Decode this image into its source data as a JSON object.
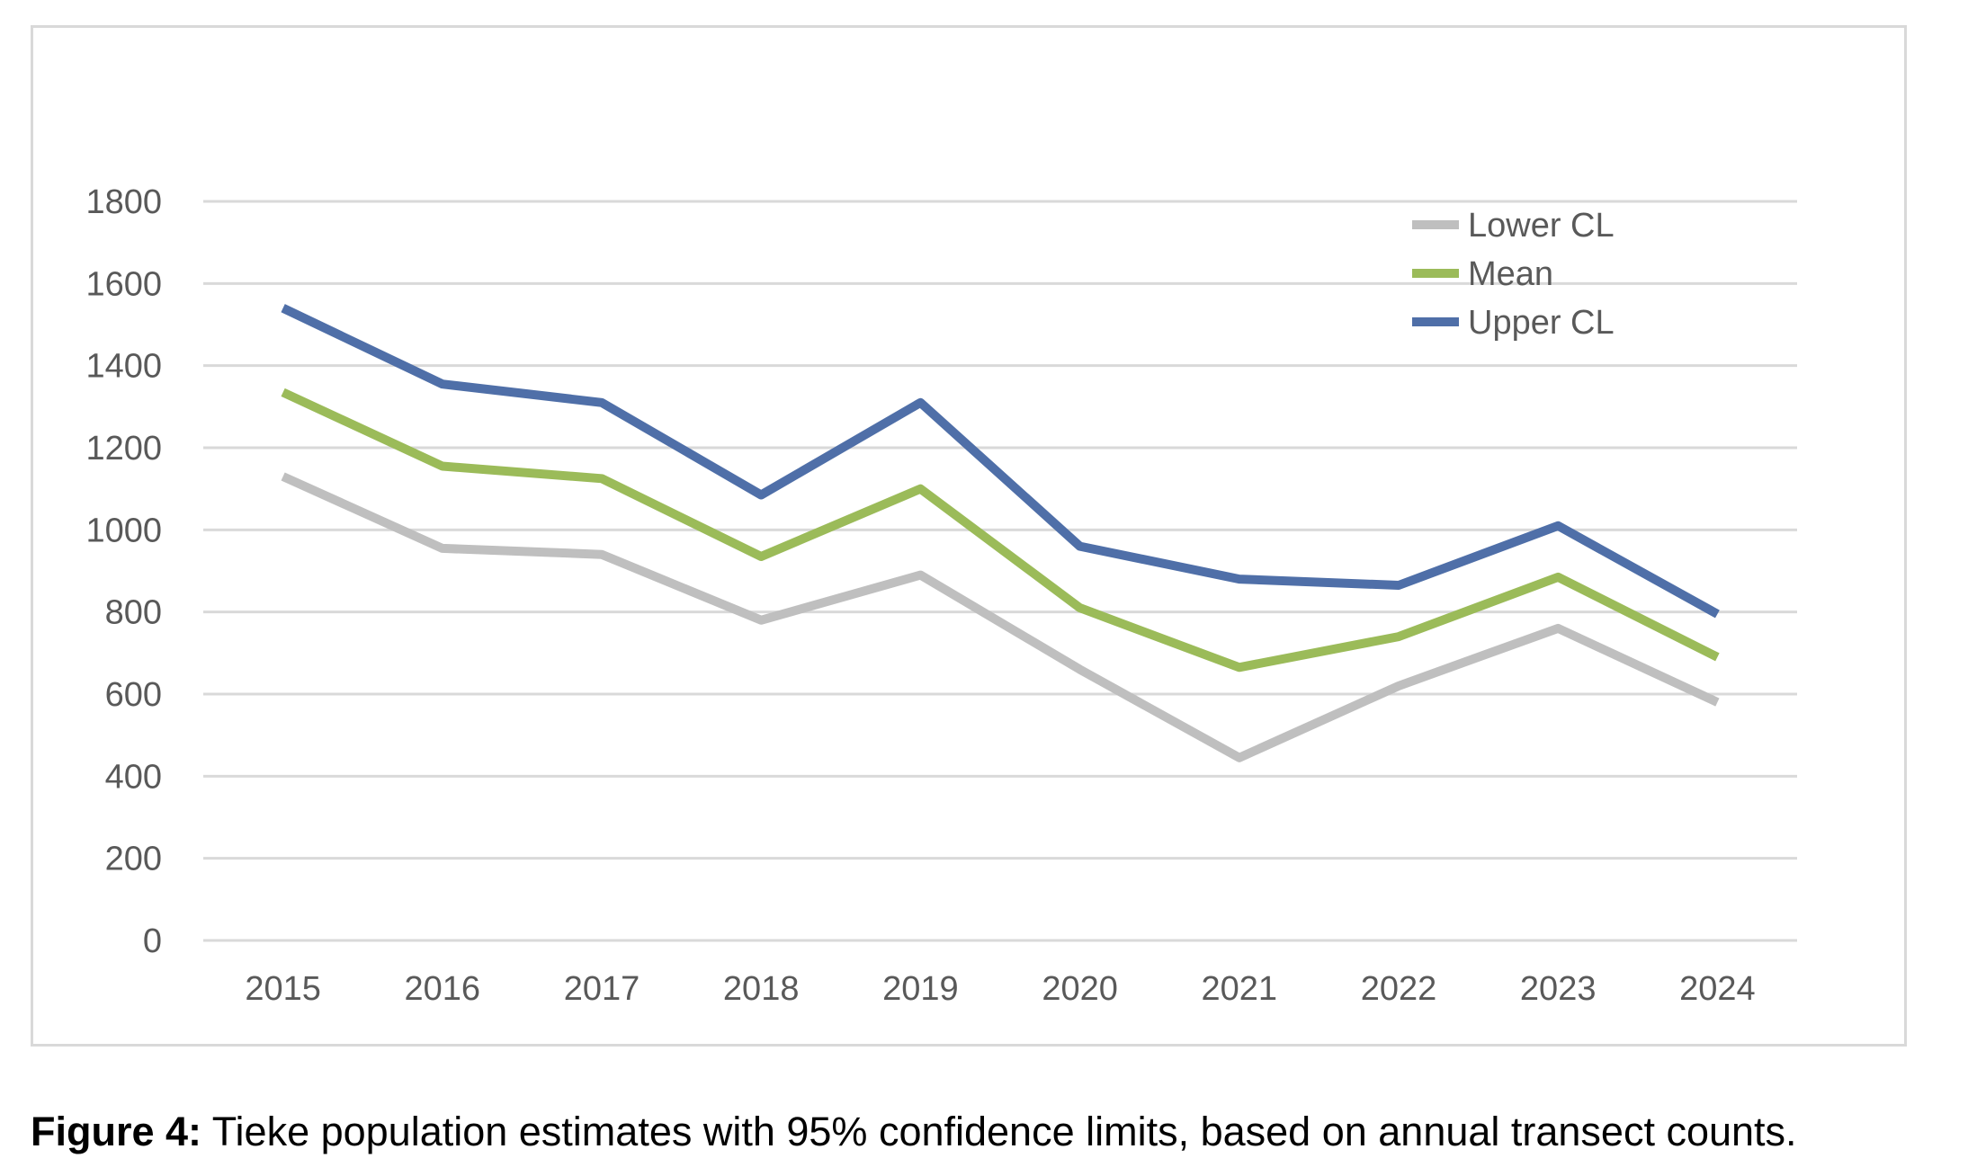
{
  "chart_data": {
    "type": "line",
    "x": [
      "2015",
      "2016",
      "2017",
      "2018",
      "2019",
      "2020",
      "2021",
      "2022",
      "2023",
      "2024"
    ],
    "series": [
      {
        "name": "Lower CL",
        "color": "#bfbfbf",
        "values": [
          1130,
          955,
          940,
          780,
          890,
          660,
          445,
          620,
          760,
          580
        ]
      },
      {
        "name": "Mean",
        "color": "#9bbb59",
        "values": [
          1335,
          1155,
          1125,
          935,
          1100,
          810,
          665,
          740,
          885,
          690
        ]
      },
      {
        "name": "Upper CL",
        "color": "#4f6fa8",
        "values": [
          1540,
          1355,
          1310,
          1085,
          1310,
          960,
          880,
          865,
          1010,
          795
        ]
      }
    ],
    "yticks": [
      "0",
      "200",
      "400",
      "600",
      "800",
      "1000",
      "1200",
      "1400",
      "1600",
      "1800"
    ],
    "ylim": [
      0,
      1800
    ],
    "grid": true,
    "legend_position": "top-right"
  },
  "caption": {
    "label": "Figure 4:",
    "text": " Tieke population estimates with 95% confidence limits, based on annual transect counts."
  }
}
